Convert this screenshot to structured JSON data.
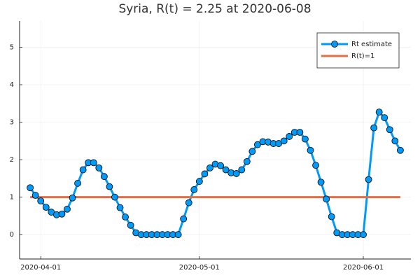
{
  "chart_data": {
    "type": "line",
    "title": "Syria, R(t) = 2.25 at 2020-06-08",
    "x": [
      "2020-03-30",
      "2020-03-31",
      "2020-04-01",
      "2020-04-02",
      "2020-04-03",
      "2020-04-04",
      "2020-04-05",
      "2020-04-06",
      "2020-04-07",
      "2020-04-08",
      "2020-04-09",
      "2020-04-10",
      "2020-04-11",
      "2020-04-12",
      "2020-04-13",
      "2020-04-14",
      "2020-04-15",
      "2020-04-16",
      "2020-04-17",
      "2020-04-18",
      "2020-04-19",
      "2020-04-20",
      "2020-04-21",
      "2020-04-22",
      "2020-04-23",
      "2020-04-24",
      "2020-04-25",
      "2020-04-26",
      "2020-04-27",
      "2020-04-28",
      "2020-04-29",
      "2020-04-30",
      "2020-05-01",
      "2020-05-02",
      "2020-05-03",
      "2020-05-04",
      "2020-05-05",
      "2020-05-06",
      "2020-05-07",
      "2020-05-08",
      "2020-05-09",
      "2020-05-10",
      "2020-05-11",
      "2020-05-12",
      "2020-05-13",
      "2020-05-14",
      "2020-05-15",
      "2020-05-16",
      "2020-05-17",
      "2020-05-18",
      "2020-05-19",
      "2020-05-20",
      "2020-05-21",
      "2020-05-22",
      "2020-05-23",
      "2020-05-24",
      "2020-05-25",
      "2020-05-26",
      "2020-05-27",
      "2020-05-28",
      "2020-05-29",
      "2020-05-30",
      "2020-05-31",
      "2020-06-01",
      "2020-06-02",
      "2020-06-03",
      "2020-06-04",
      "2020-06-05",
      "2020-06-06",
      "2020-06-07",
      "2020-06-08"
    ],
    "series": [
      {
        "name": "Rt estimate",
        "color": "#009af9",
        "markers": true,
        "values": [
          1.25,
          1.05,
          0.9,
          0.73,
          0.6,
          0.53,
          0.55,
          0.68,
          0.98,
          1.37,
          1.73,
          1.92,
          1.92,
          1.78,
          1.55,
          1.28,
          1.0,
          0.72,
          0.47,
          0.25,
          0.05,
          0,
          0,
          0,
          0,
          0,
          0,
          0,
          0,
          0.42,
          0.85,
          1.2,
          1.42,
          1.62,
          1.78,
          1.88,
          1.84,
          1.73,
          1.65,
          1.63,
          1.73,
          1.95,
          2.22,
          2.4,
          2.48,
          2.47,
          2.43,
          2.43,
          2.5,
          2.62,
          2.73,
          2.73,
          2.55,
          2.25,
          1.85,
          1.4,
          0.95,
          0.48,
          0.05,
          0,
          0,
          0,
          0,
          0,
          1.47,
          2.85,
          3.27,
          3.12,
          2.8,
          2.5,
          2.25
        ]
      },
      {
        "name": "R(t)=1",
        "color": "#e26f46",
        "markers": false,
        "x": [
          "2020-03-30",
          "2020-06-08"
        ],
        "values": [
          1,
          1
        ]
      }
    ],
    "xlim": [
      "2020-03-28",
      "2020-06-10"
    ],
    "xticks": [
      "2020-04-01",
      "2020-05-01",
      "2020-06-01"
    ],
    "ylim": [
      -0.65,
      5.7
    ],
    "yticks": [
      0,
      1,
      2,
      3,
      4,
      5
    ],
    "grid": true,
    "legend": "top-right"
  }
}
